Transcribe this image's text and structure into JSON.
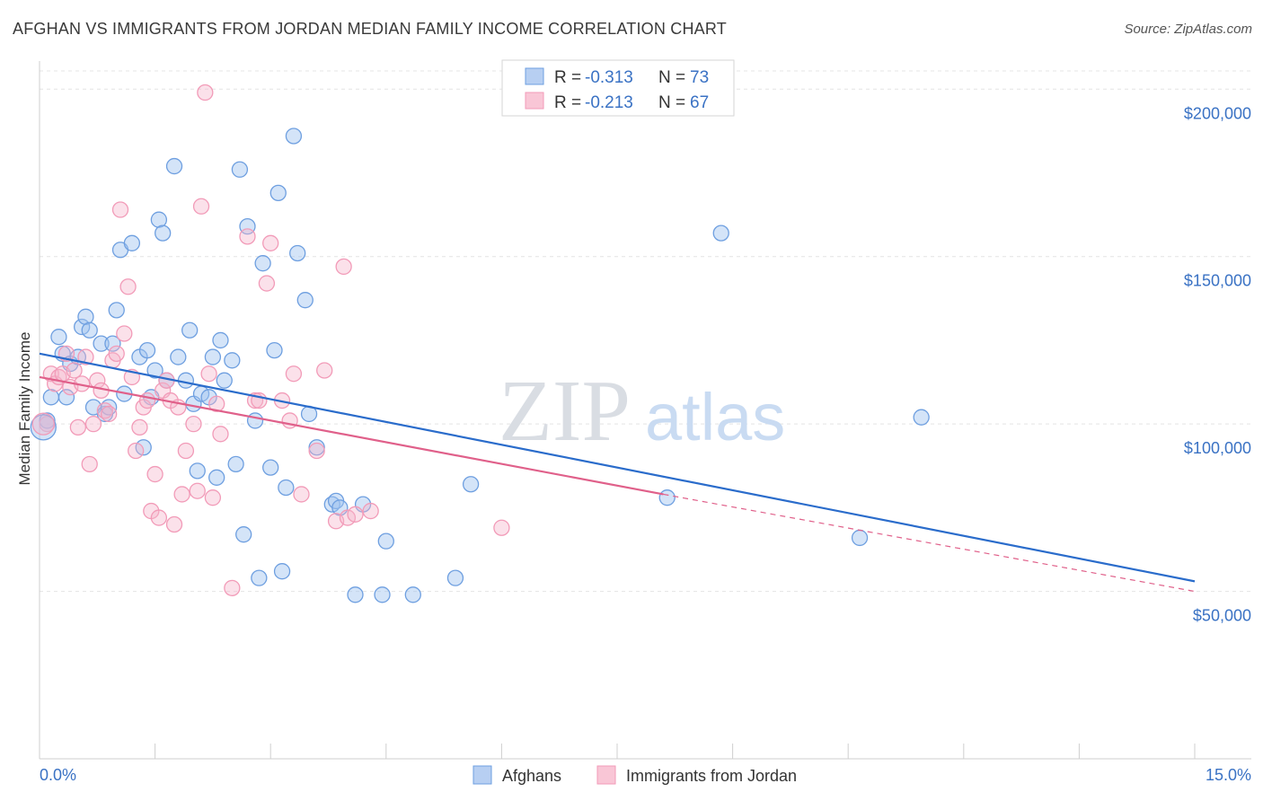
{
  "title": "AFGHAN VS IMMIGRANTS FROM JORDAN MEDIAN FAMILY INCOME CORRELATION CHART",
  "source": "Source: ZipAtlas.com",
  "watermark": {
    "zip": "ZIP",
    "atlas": "atlas"
  },
  "chart_data": {
    "type": "scatter",
    "ylabel": "Median Family Income",
    "xlim": [
      0,
      15
    ],
    "ylim": [
      0,
      210000
    ],
    "x_tick_labels": {
      "min": "0.0%",
      "max": "15.0%"
    },
    "y_ticks": [
      {
        "value": 50000,
        "label": "$50,000"
      },
      {
        "value": 100000,
        "label": "$100,000"
      },
      {
        "value": 150000,
        "label": "$150,000"
      },
      {
        "value": 200000,
        "label": "$200,000"
      }
    ],
    "legend": [
      {
        "r_label": "R =",
        "r": "-0.313",
        "n_label": "N =",
        "n": "73"
      },
      {
        "r_label": "R =",
        "r": "-0.213",
        "n_label": "N =",
        "n": "67"
      }
    ],
    "series": [
      {
        "name": "Afghans",
        "color": "#6e9fe0",
        "line_color": "#2a6ccb",
        "trend": {
          "x0": 0,
          "y0": 121000,
          "x1": 15,
          "y1": 53000
        },
        "points": [
          [
            0.1,
            101000
          ],
          [
            0.15,
            108000
          ],
          [
            0.25,
            126000
          ],
          [
            0.3,
            121000
          ],
          [
            0.35,
            108000
          ],
          [
            0.4,
            118000
          ],
          [
            0.5,
            120000
          ],
          [
            0.55,
            129000
          ],
          [
            0.6,
            132000
          ],
          [
            0.65,
            128000
          ],
          [
            0.7,
            105000
          ],
          [
            0.8,
            124000
          ],
          [
            0.85,
            103000
          ],
          [
            0.9,
            105000
          ],
          [
            0.95,
            124000
          ],
          [
            1.0,
            134000
          ],
          [
            1.05,
            152000
          ],
          [
            1.1,
            109000
          ],
          [
            1.2,
            154000
          ],
          [
            1.3,
            120000
          ],
          [
            1.35,
            93000
          ],
          [
            1.4,
            122000
          ],
          [
            1.45,
            108000
          ],
          [
            1.5,
            116000
          ],
          [
            1.55,
            161000
          ],
          [
            1.6,
            157000
          ],
          [
            1.65,
            113000
          ],
          [
            1.75,
            177000
          ],
          [
            1.8,
            120000
          ],
          [
            1.9,
            113000
          ],
          [
            1.95,
            128000
          ],
          [
            2.0,
            106000
          ],
          [
            2.05,
            86000
          ],
          [
            2.1,
            109000
          ],
          [
            2.2,
            108000
          ],
          [
            2.25,
            120000
          ],
          [
            2.3,
            84000
          ],
          [
            2.35,
            125000
          ],
          [
            2.4,
            113000
          ],
          [
            2.5,
            119000
          ],
          [
            2.55,
            88000
          ],
          [
            2.6,
            176000
          ],
          [
            2.65,
            67000
          ],
          [
            2.7,
            159000
          ],
          [
            2.8,
            101000
          ],
          [
            2.85,
            54000
          ],
          [
            2.9,
            148000
          ],
          [
            3.0,
            87000
          ],
          [
            3.05,
            122000
          ],
          [
            3.1,
            169000
          ],
          [
            3.15,
            56000
          ],
          [
            3.2,
            81000
          ],
          [
            3.3,
            186000
          ],
          [
            3.35,
            151000
          ],
          [
            3.45,
            137000
          ],
          [
            3.5,
            103000
          ],
          [
            3.6,
            93000
          ],
          [
            3.8,
            76000
          ],
          [
            3.85,
            77000
          ],
          [
            3.9,
            75000
          ],
          [
            4.1,
            49000
          ],
          [
            4.2,
            76000
          ],
          [
            4.45,
            49000
          ],
          [
            4.5,
            65000
          ],
          [
            4.85,
            49000
          ],
          [
            5.4,
            54000
          ],
          [
            5.6,
            82000
          ],
          [
            8.15,
            78000
          ],
          [
            8.85,
            157000
          ],
          [
            10.65,
            66000
          ],
          [
            11.45,
            102000
          ]
        ]
      },
      {
        "name": "Immigrants from Jordan",
        "color": "#f29bb8",
        "line_color": "#e0608a",
        "trend": {
          "x0": 0,
          "y0": 114000,
          "x1": 8.1,
          "y1": 79000
        },
        "trend_dashed": {
          "x0": 8.1,
          "y0": 79000,
          "x1": 15,
          "y1": 50000
        },
        "points": [
          [
            0.1,
            100000
          ],
          [
            0.15,
            115000
          ],
          [
            0.2,
            112000
          ],
          [
            0.25,
            114000
          ],
          [
            0.3,
            115000
          ],
          [
            0.35,
            121000
          ],
          [
            0.4,
            111000
          ],
          [
            0.45,
            116000
          ],
          [
            0.5,
            99000
          ],
          [
            0.55,
            112000
          ],
          [
            0.6,
            120000
          ],
          [
            0.65,
            88000
          ],
          [
            0.7,
            100000
          ],
          [
            0.75,
            113000
          ],
          [
            0.8,
            110000
          ],
          [
            0.85,
            104000
          ],
          [
            0.9,
            103000
          ],
          [
            0.95,
            119000
          ],
          [
            1.0,
            121000
          ],
          [
            1.05,
            164000
          ],
          [
            1.1,
            127000
          ],
          [
            1.15,
            141000
          ],
          [
            1.2,
            114000
          ],
          [
            1.25,
            92000
          ],
          [
            1.3,
            99000
          ],
          [
            1.35,
            105000
          ],
          [
            1.4,
            107000
          ],
          [
            1.45,
            74000
          ],
          [
            1.5,
            85000
          ],
          [
            1.55,
            72000
          ],
          [
            1.6,
            110000
          ],
          [
            1.65,
            113000
          ],
          [
            1.7,
            107000
          ],
          [
            1.75,
            70000
          ],
          [
            1.8,
            105000
          ],
          [
            1.85,
            79000
          ],
          [
            1.9,
            92000
          ],
          [
            2.0,
            100000
          ],
          [
            2.05,
            80000
          ],
          [
            2.1,
            165000
          ],
          [
            2.15,
            199000
          ],
          [
            2.2,
            115000
          ],
          [
            2.25,
            78000
          ],
          [
            2.3,
            106000
          ],
          [
            2.35,
            97000
          ],
          [
            2.5,
            51000
          ],
          [
            2.7,
            156000
          ],
          [
            2.8,
            107000
          ],
          [
            2.85,
            107000
          ],
          [
            2.95,
            142000
          ],
          [
            3.0,
            154000
          ],
          [
            3.15,
            107000
          ],
          [
            3.25,
            101000
          ],
          [
            3.3,
            115000
          ],
          [
            3.4,
            79000
          ],
          [
            3.6,
            92000
          ],
          [
            3.7,
            116000
          ],
          [
            3.85,
            71000
          ],
          [
            3.95,
            147000
          ],
          [
            4.0,
            72000
          ],
          [
            4.1,
            73000
          ],
          [
            4.3,
            74000
          ],
          [
            6.0,
            69000
          ]
        ]
      }
    ]
  }
}
